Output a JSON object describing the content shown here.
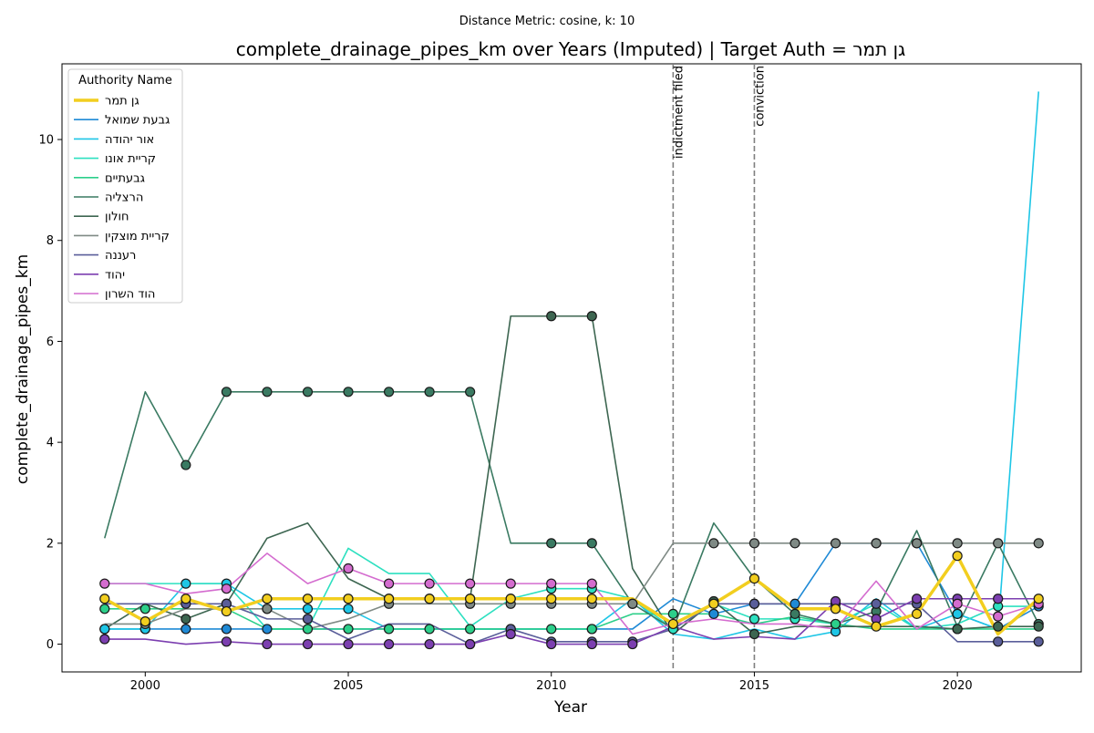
{
  "chart_data": {
    "type": "line",
    "suptitle": "Distance Metric: cosine, k: 10",
    "title": "complete_drainage_pipes_km over Years (Imputed) | Target Auth = גן תמר",
    "xlabel": "Year",
    "ylabel": "complete_drainage_pipes_km",
    "xlim": [
      1997.95,
      2023.05
    ],
    "ylim": [
      -0.55,
      11.5
    ],
    "xticks": [
      2000,
      2005,
      2010,
      2015,
      2020
    ],
    "yticks": [
      0,
      2,
      4,
      6,
      8,
      10
    ],
    "grid": false,
    "legend": {
      "title": "Authority Name",
      "position": "top-left"
    },
    "vlines": [
      {
        "x": 2013,
        "label": "indictment filed"
      },
      {
        "x": 2015,
        "label": "conviction"
      }
    ],
    "x": [
      1999,
      2000,
      2001,
      2002,
      2003,
      2004,
      2005,
      2006,
      2007,
      2008,
      2009,
      2010,
      2011,
      2012,
      2013,
      2014,
      2015,
      2016,
      2017,
      2018,
      2019,
      2020,
      2021,
      2022
    ],
    "series": [
      {
        "name": "גן תמר",
        "color": "#f2ce1f",
        "target": true,
        "values": [
          0.9,
          0.45,
          0.9,
          0.65,
          0.9,
          0.9,
          0.9,
          0.9,
          0.9,
          0.9,
          0.9,
          0.9,
          0.9,
          0.9,
          0.4,
          0.8,
          1.3,
          0.7,
          0.7,
          0.35,
          0.6,
          1.75,
          0.2,
          0.9
        ],
        "imputed": [
          0,
          1,
          2,
          3,
          4,
          5,
          6,
          7,
          8,
          9,
          10,
          11,
          12,
          14,
          15,
          16,
          18,
          19,
          20,
          21,
          23
        ]
      },
      {
        "name": "גבעת שמואל",
        "color": "#1f8ad6",
        "values": [
          0.3,
          0.3,
          0.3,
          0.3,
          0.3,
          0.3,
          0.3,
          0.3,
          0.3,
          0.3,
          0.3,
          0.3,
          0.3,
          0.3,
          0.9,
          0.6,
          0.8,
          0.8,
          2.0,
          2.0,
          2.0,
          0.6,
          0.3,
          0.75
        ],
        "imputed": [
          0,
          1,
          2,
          3,
          4,
          15,
          16,
          17,
          19,
          20,
          21,
          23
        ]
      },
      {
        "name": "אור יהודה",
        "color": "#1ec6e6",
        "values": [
          0.3,
          0.3,
          1.2,
          1.2,
          0.7,
          0.7,
          0.7,
          0.3,
          0.3,
          0.3,
          0.3,
          0.3,
          0.3,
          0.9,
          0.2,
          0.1,
          0.3,
          0.1,
          0.25,
          0.9,
          0.3,
          0.6,
          0.3,
          10.95
        ],
        "imputed": [
          0,
          1,
          2,
          3,
          4,
          5,
          6,
          12,
          18,
          21
        ]
      },
      {
        "name": "קריית אונו",
        "color": "#2de0c0",
        "values": [
          1.2,
          1.2,
          1.2,
          1.2,
          0.3,
          0.3,
          1.9,
          1.4,
          1.4,
          0.35,
          0.9,
          1.1,
          1.1,
          0.9,
          0.3,
          0.8,
          0.5,
          0.5,
          0.4,
          0.8,
          0.3,
          0.4,
          0.75,
          0.75
        ],
        "imputed": [
          10,
          11,
          12,
          14,
          16,
          17,
          18,
          22
        ]
      },
      {
        "name": "גבעתיים",
        "color": "#2ccf8a",
        "values": [
          0.7,
          0.7,
          0.7,
          0.7,
          0.3,
          0.3,
          0.3,
          0.3,
          0.3,
          0.3,
          0.3,
          0.3,
          0.3,
          0.6,
          0.6,
          0.6,
          0.4,
          0.55,
          0.4,
          0.3,
          0.3,
          0.3,
          0.3,
          0.3
        ],
        "imputed": [
          0,
          1,
          5,
          6,
          7,
          8,
          9,
          10,
          11,
          12,
          14,
          18,
          21
        ]
      },
      {
        "name": "הרצליה",
        "color": "#3a7a62",
        "values": [
          2.1,
          5.0,
          3.55,
          5.0,
          5.0,
          5.0,
          5.0,
          5.0,
          5.0,
          5.0,
          2.0,
          2.0,
          2.0,
          0.8,
          0.3,
          2.4,
          1.3,
          0.6,
          0.4,
          0.65,
          2.25,
          0.35,
          2.0,
          0.4
        ],
        "imputed": [
          2,
          3,
          4,
          5,
          6,
          7,
          8,
          9,
          11,
          12,
          13,
          17,
          19,
          23
        ]
      },
      {
        "name": "חולון",
        "color": "#3d6651",
        "values": [
          0.3,
          0.8,
          0.5,
          0.8,
          2.1,
          2.4,
          1.3,
          0.9,
          0.9,
          0.9,
          6.5,
          6.5,
          6.5,
          1.5,
          0.2,
          0.85,
          0.2,
          0.35,
          0.35,
          0.35,
          0.35,
          0.3,
          0.35,
          0.35
        ],
        "imputed": [
          2,
          3,
          7,
          8,
          9,
          11,
          12,
          15,
          16,
          21,
          22,
          23
        ]
      },
      {
        "name": "קריית מוצקין",
        "color": "#7f8a85",
        "values": [
          0.4,
          0.4,
          0.7,
          0.7,
          0.7,
          0.3,
          0.5,
          0.8,
          0.8,
          0.8,
          0.8,
          0.8,
          0.8,
          0.8,
          2.0,
          2.0,
          2.0,
          2.0,
          2.0,
          2.0,
          2.0,
          2.0,
          2.0,
          2.0
        ],
        "imputed": [
          1,
          4,
          7,
          9,
          10,
          11,
          12,
          13,
          15,
          16,
          17,
          18,
          19,
          20,
          21,
          22,
          23
        ]
      },
      {
        "name": "רעננה",
        "color": "#5a5e9a",
        "values": [
          0.8,
          0.8,
          0.8,
          0.8,
          0.5,
          0.5,
          0.1,
          0.4,
          0.4,
          0.0,
          0.3,
          0.05,
          0.05,
          0.05,
          0.3,
          0.8,
          0.8,
          0.8,
          0.8,
          0.8,
          0.8,
          0.05,
          0.05,
          0.05
        ],
        "imputed": [
          2,
          3,
          5,
          9,
          10,
          11,
          12,
          13,
          16,
          18,
          19,
          20,
          22,
          23
        ]
      },
      {
        "name": "יהוד",
        "color": "#7c3fb0",
        "values": [
          0.1,
          0.1,
          0.0,
          0.05,
          0.0,
          0.0,
          0.0,
          0.0,
          0.0,
          0.0,
          0.2,
          0.0,
          0.0,
          0.0,
          0.35,
          0.1,
          0.15,
          0.1,
          0.85,
          0.5,
          0.9,
          0.9,
          0.9,
          0.9
        ],
        "imputed": [
          0,
          3,
          4,
          5,
          6,
          7,
          8,
          9,
          10,
          11,
          12,
          13,
          18,
          19,
          20,
          21,
          22
        ]
      },
      {
        "name": "הוד השרון",
        "color": "#d46ccf",
        "values": [
          1.2,
          1.2,
          1.0,
          1.1,
          1.8,
          1.2,
          1.5,
          1.2,
          1.2,
          1.2,
          1.2,
          1.2,
          1.2,
          0.2,
          0.4,
          0.5,
          0.4,
          0.4,
          0.3,
          1.25,
          0.3,
          0.8,
          0.55,
          0.8
        ],
        "imputed": [
          0,
          3,
          6,
          7,
          8,
          9,
          10,
          11,
          12,
          21,
          22,
          23
        ]
      }
    ]
  }
}
